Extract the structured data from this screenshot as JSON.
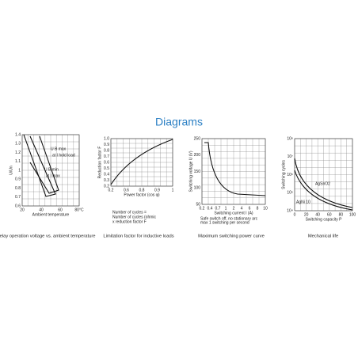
{
  "title": "Diagrams",
  "panels": [
    {
      "caption": "Relay operation voltage vs. ambient temperature",
      "y_label": "U/Un",
      "x_label": "Ambient temperature",
      "y_ticks": [
        "1.4",
        "1.3",
        "1.2",
        "1.1",
        "1",
        "0.9",
        "0.8",
        "0.7",
        "0.6"
      ],
      "x_ticks": [
        "20",
        "40",
        "60",
        "80°C"
      ],
      "notes": [
        "U B max",
        "at I hold load",
        "U B min",
        "at I max"
      ]
    },
    {
      "caption": "Limitation factor for inductive loads",
      "y_label": "Reduction factor F",
      "x_label": "Power factor (cos φ)",
      "y_ticks": [
        "1.0",
        "0.9",
        "0.8",
        "0.7",
        "0.6",
        "0.5",
        "0.4",
        "0.3",
        "0.2"
      ],
      "x_ticks": [
        "0.2",
        "0.6",
        "0.8",
        "0.9",
        "1"
      ],
      "notes": [
        "Number of cycles =",
        "Number of cycles (ohmic",
        "x reduction factor F"
      ]
    },
    {
      "caption": "Maximum switching power curve",
      "y_label": "Switching voltage U (V)",
      "x_label": "Switching current I (A)",
      "y_ticks": [
        "250",
        "200",
        "150",
        "100",
        "50"
      ],
      "x_ticks": [
        "0.2",
        "0.4",
        "0.7",
        "1",
        "2",
        "4",
        "6",
        "8",
        "10"
      ],
      "notes": [
        "Safe switch off, no stationary arc",
        "max 1 switching per second"
      ]
    },
    {
      "caption": "Mechanical life",
      "y_label": "Switching cycles",
      "x_label": "Switching capacity P",
      "y_ticks": [
        "10⁸",
        "10⁷",
        "10⁶",
        "10⁵",
        "10⁴"
      ],
      "x_ticks": [
        "0",
        "20",
        "40",
        "60",
        "80",
        "100"
      ],
      "notes": [
        "AgSnO2",
        "AgNi 10"
      ]
    }
  ]
}
